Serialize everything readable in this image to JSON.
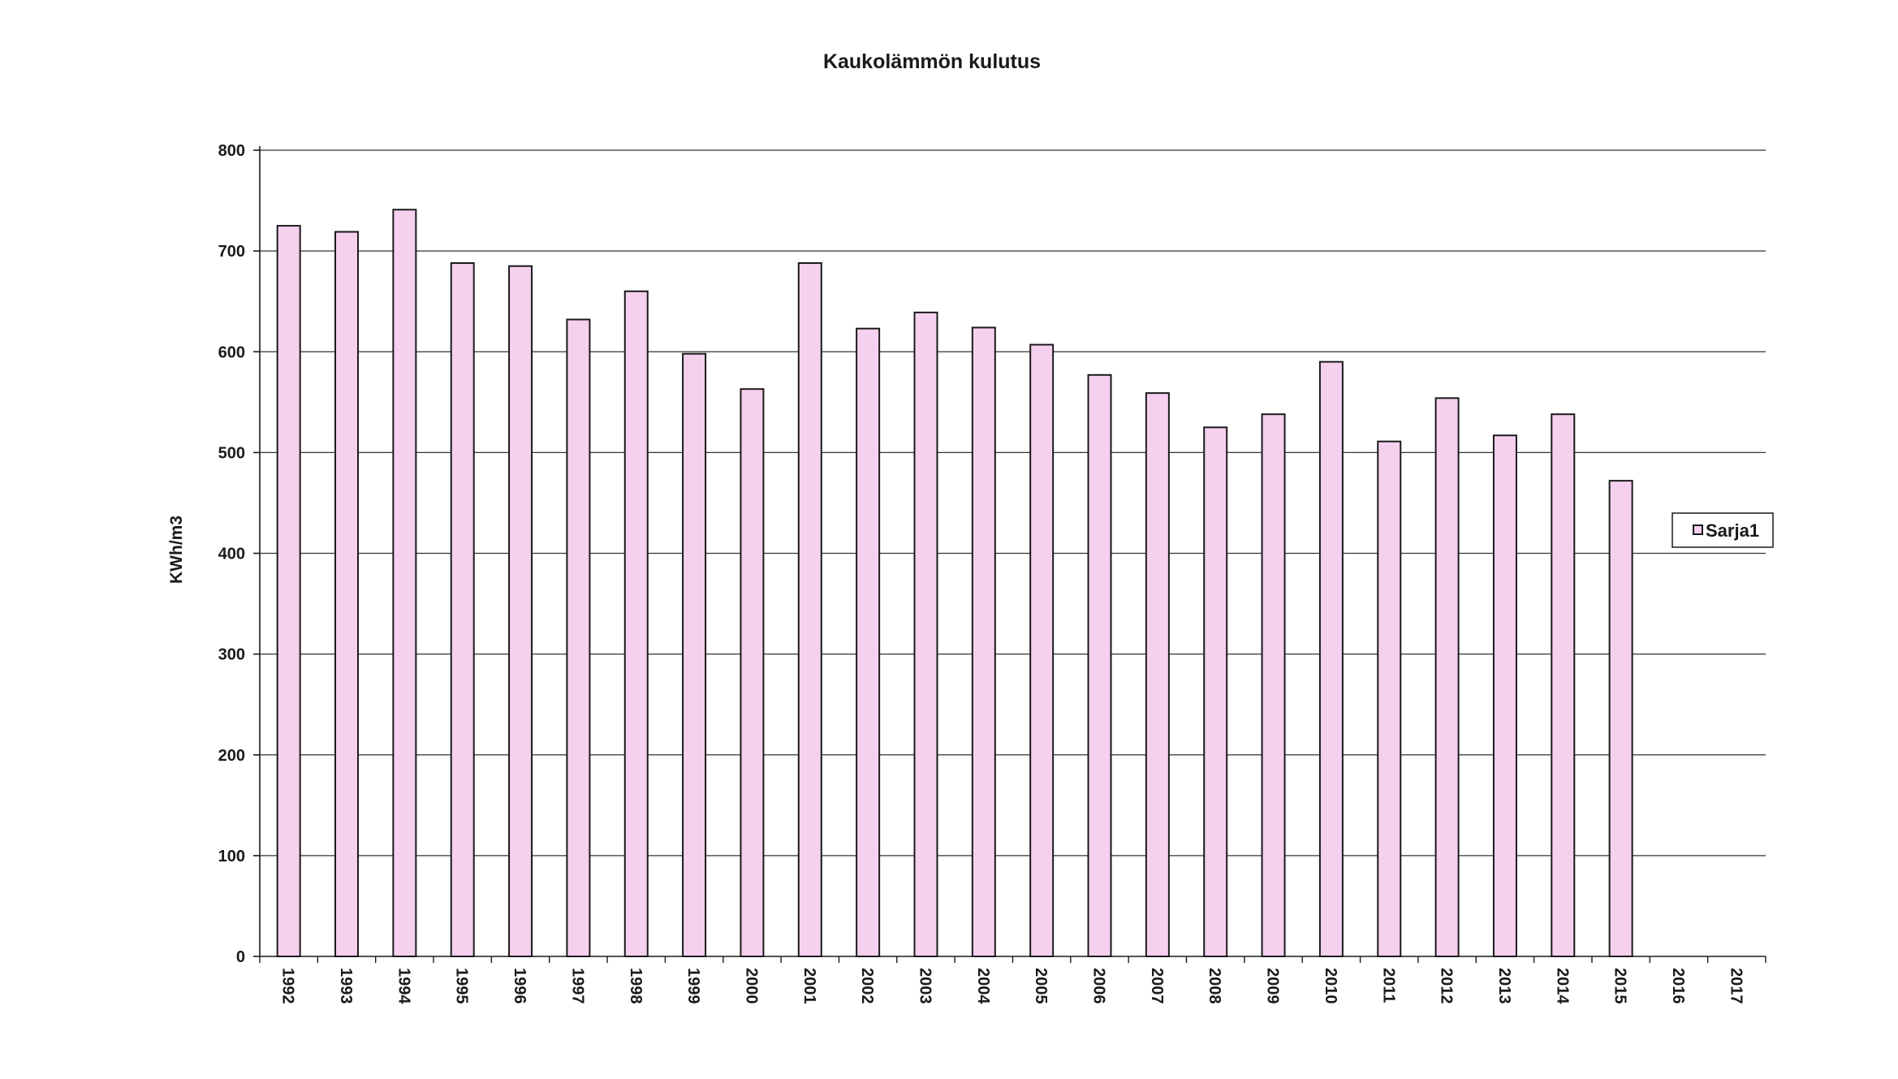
{
  "chart_data": {
    "type": "bar",
    "title": "Kaukolämmön kulutus",
    "xlabel": "",
    "ylabel": "KWh/m3",
    "ylim": [
      0,
      800
    ],
    "yticks": [
      0,
      100,
      200,
      300,
      400,
      500,
      600,
      700,
      800
    ],
    "grid": true,
    "legend_position": "right",
    "bar_color": "#f5d0ef",
    "bar_edge_color": "#1a1a1a",
    "categories": [
      "1992",
      "1993",
      "1994",
      "1995",
      "1996",
      "1997",
      "1998",
      "1999",
      "2000",
      "2001",
      "2002",
      "2003",
      "2004",
      "2005",
      "2006",
      "2007",
      "2008",
      "2009",
      "2010",
      "2011",
      "2012",
      "2013",
      "2014",
      "2015",
      "2016",
      "2017"
    ],
    "series": [
      {
        "name": "Sarja1",
        "values": [
          725,
          719,
          741,
          688,
          685,
          632,
          660,
          598,
          563,
          688,
          623,
          639,
          624,
          607,
          577,
          559,
          525,
          538,
          590,
          511,
          554,
          517,
          538,
          472,
          null,
          null
        ]
      }
    ]
  }
}
